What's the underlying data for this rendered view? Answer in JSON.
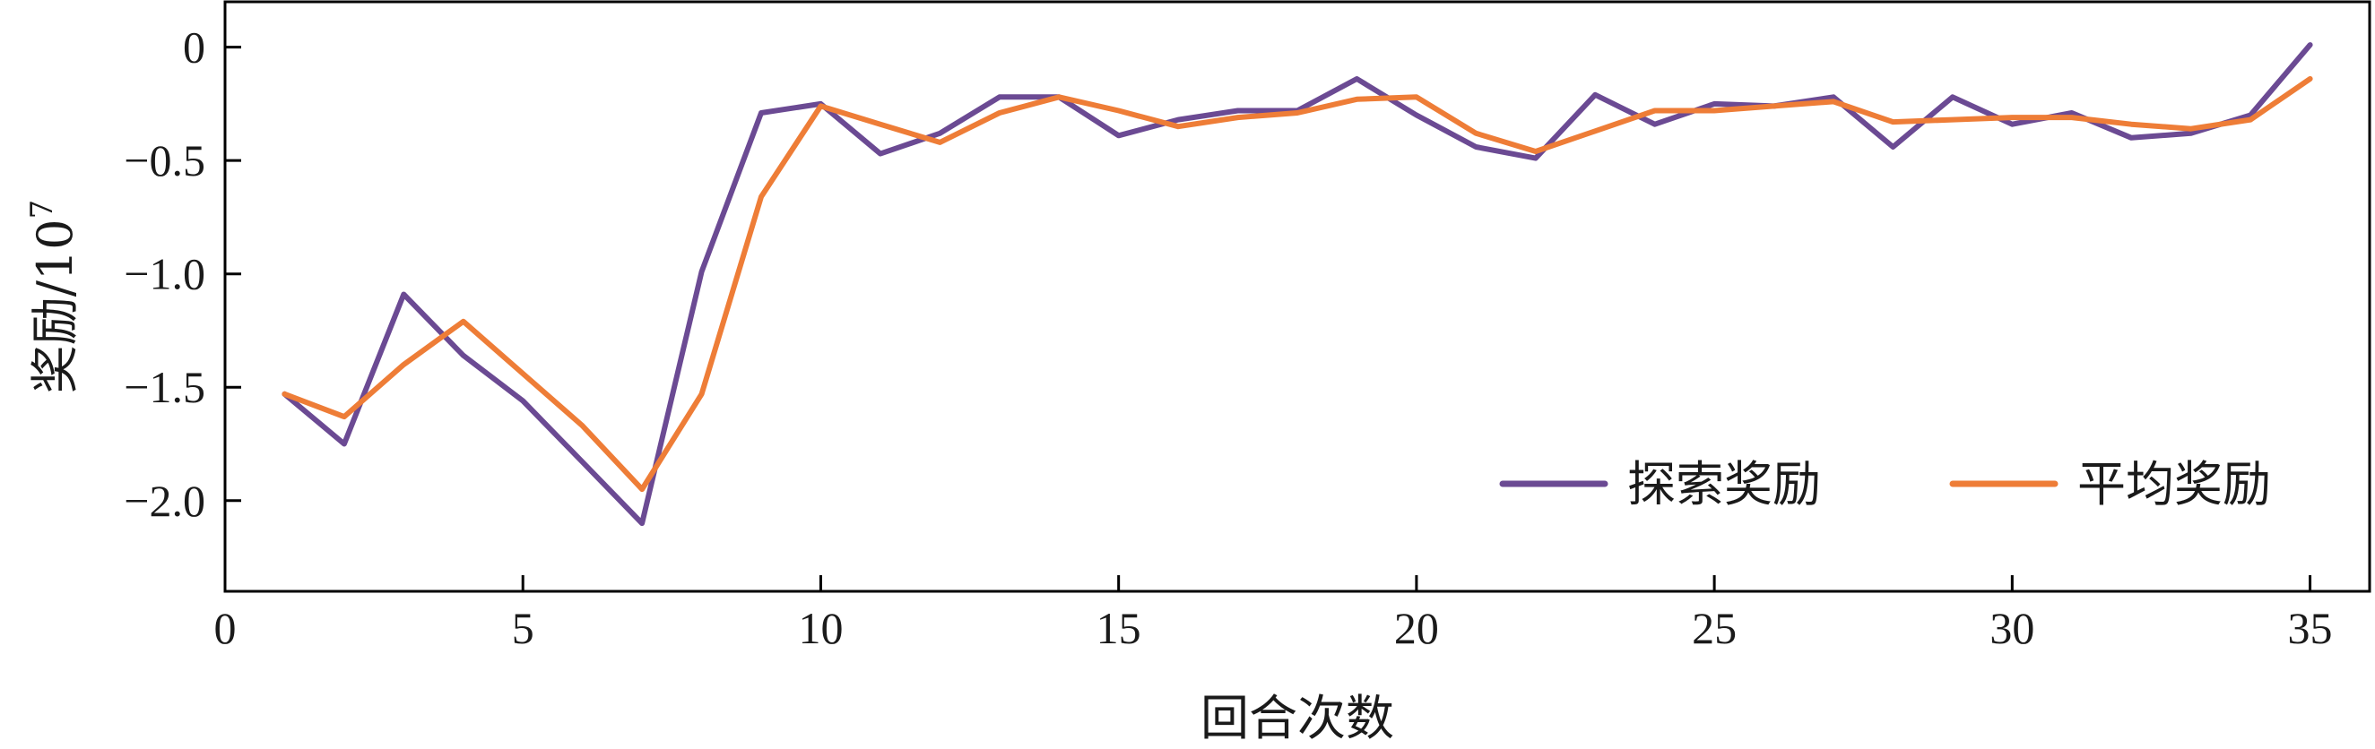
{
  "chart_data": {
    "type": "line",
    "title": "",
    "xlabel": "回合次数",
    "ylabel": "奖励/10",
    "ylabel_exponent": "7",
    "xlim": [
      0,
      36
    ],
    "ylim": [
      -2.4,
      0.2
    ],
    "xticks": [
      0,
      5,
      10,
      15,
      20,
      25,
      30,
      35
    ],
    "xtick_labels": [
      "0",
      "5",
      "10",
      "15",
      "20",
      "25",
      "30",
      "35"
    ],
    "yticks": [
      0,
      -0.5,
      -1.0,
      -1.5,
      -2.0
    ],
    "ytick_labels": [
      "0",
      "−0.5",
      "−1.0",
      "−1.5",
      "−2.0"
    ],
    "grid": false,
    "legend_position": "bottom-right",
    "x": [
      1,
      2,
      3,
      4,
      5,
      6,
      7,
      8,
      9,
      10,
      11,
      12,
      13,
      14,
      15,
      16,
      17,
      18,
      19,
      20,
      21,
      22,
      23,
      24,
      25,
      26,
      27,
      28,
      29,
      30,
      31,
      32,
      33,
      34,
      35
    ],
    "series": [
      {
        "name": "探索奖励",
        "color": "#6b4a93",
        "values": [
          -1.53,
          -1.75,
          -1.09,
          -1.36,
          -1.56,
          -1.83,
          -2.1,
          -0.99,
          -0.29,
          -0.25,
          -0.47,
          -0.38,
          -0.22,
          -0.22,
          -0.39,
          -0.32,
          -0.28,
          -0.28,
          -0.14,
          -0.3,
          -0.44,
          -0.49,
          -0.21,
          -0.34,
          -0.25,
          -0.26,
          -0.22,
          -0.44,
          -0.22,
          -0.34,
          -0.29,
          -0.4,
          -0.38,
          -0.3,
          0.01
        ]
      },
      {
        "name": "平均奖励",
        "color": "#ee7d37",
        "values": [
          -1.53,
          -1.63,
          -1.4,
          -1.21,
          -1.44,
          -1.67,
          -1.95,
          -1.53,
          -0.66,
          -0.26,
          -0.34,
          -0.42,
          -0.29,
          -0.22,
          -0.28,
          -0.35,
          -0.31,
          -0.29,
          -0.23,
          -0.22,
          -0.38,
          -0.46,
          -0.37,
          -0.28,
          -0.28,
          -0.26,
          -0.24,
          -0.33,
          -0.32,
          -0.31,
          -0.31,
          -0.34,
          -0.36,
          -0.32,
          -0.14
        ]
      }
    ]
  }
}
